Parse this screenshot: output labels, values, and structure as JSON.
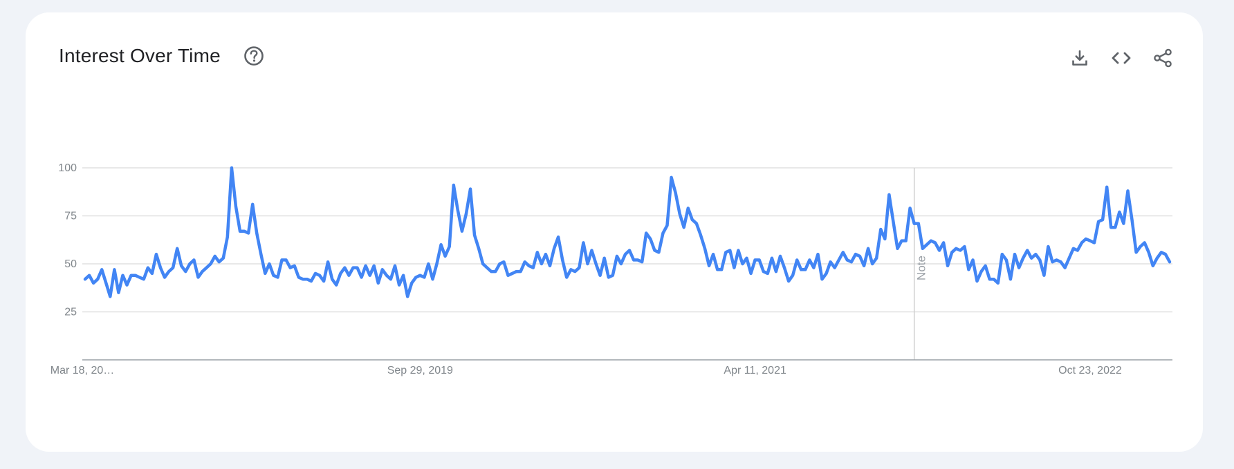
{
  "card": {
    "title": "Interest Over Time"
  },
  "icons": {
    "help": "help-circle-icon",
    "download": "download-icon",
    "embed": "code-icon",
    "share": "share-icon"
  },
  "colors": {
    "line": "#4285f4",
    "grid": "#e0e0e0",
    "axis": "#9aa0a6",
    "tick_text": "#80868b",
    "note_line": "#cfcfcf",
    "note_text": "#9aa0a6",
    "icon": "#5f6368"
  },
  "chart_data": {
    "type": "line",
    "title": "Interest Over Time",
    "xlabel": "",
    "ylabel": "",
    "ylim": [
      0,
      100
    ],
    "yticks": [
      25,
      50,
      75,
      100
    ],
    "xtick_labels": [
      "Mar 18, 20…",
      "Sep 29, 2019",
      "Apr 11, 2021",
      "Oct 23, 2022"
    ],
    "xtick_indices": [
      0,
      80,
      160,
      240
    ],
    "grid": true,
    "note": {
      "label": "Note",
      "index": 198
    },
    "series": [
      {
        "values": [
          42,
          44,
          40,
          42,
          47,
          40,
          33,
          47,
          35,
          44,
          39,
          44,
          44,
          43,
          42,
          48,
          45,
          55,
          48,
          43,
          46,
          48,
          58,
          49,
          46,
          50,
          52,
          43,
          46,
          48,
          50,
          54,
          51,
          53,
          64,
          100,
          80,
          67,
          67,
          66,
          81,
          66,
          55,
          45,
          50,
          44,
          43,
          52,
          52,
          48,
          49,
          43,
          42,
          42,
          41,
          45,
          44,
          41,
          51,
          42,
          39,
          45,
          48,
          44,
          48,
          48,
          43,
          49,
          44,
          49,
          40,
          47,
          44,
          42,
          49,
          39,
          44,
          33,
          40,
          43,
          44,
          43,
          50,
          42,
          50,
          60,
          54,
          59,
          91,
          78,
          67,
          76,
          89,
          65,
          58,
          50,
          48,
          46,
          46,
          50,
          51,
          44,
          45,
          46,
          46,
          51,
          49,
          48,
          56,
          50,
          55,
          49,
          58,
          64,
          52,
          43,
          47,
          46,
          48,
          61,
          50,
          57,
          50,
          44,
          53,
          43,
          44,
          54,
          50,
          55,
          57,
          52,
          52,
          51,
          66,
          63,
          57,
          56,
          66,
          70,
          95,
          87,
          76,
          69,
          79,
          73,
          71,
          65,
          58,
          49,
          55,
          47,
          47,
          56,
          57,
          48,
          57,
          50,
          53,
          45,
          52,
          52,
          46,
          45,
          53,
          46,
          54,
          48,
          41,
          44,
          52,
          47,
          47,
          52,
          48,
          55,
          42,
          45,
          51,
          48,
          52,
          56,
          52,
          51,
          55,
          54,
          49,
          58,
          50,
          53,
          68,
          63,
          86,
          72,
          58,
          62,
          62,
          79,
          71,
          71,
          58,
          60,
          62,
          61,
          57,
          61,
          49,
          56,
          58,
          57,
          59,
          47,
          52,
          41,
          46,
          49,
          42,
          42,
          40,
          55,
          52,
          42,
          55,
          48,
          53,
          57,
          53,
          55,
          52,
          44,
          59,
          51,
          52,
          51,
          48,
          53,
          58,
          57,
          61,
          63,
          62,
          61,
          72,
          73,
          90,
          69,
          69,
          77,
          71,
          88,
          73,
          56,
          59,
          61,
          56,
          49,
          53,
          56,
          55,
          51
        ]
      }
    ]
  }
}
